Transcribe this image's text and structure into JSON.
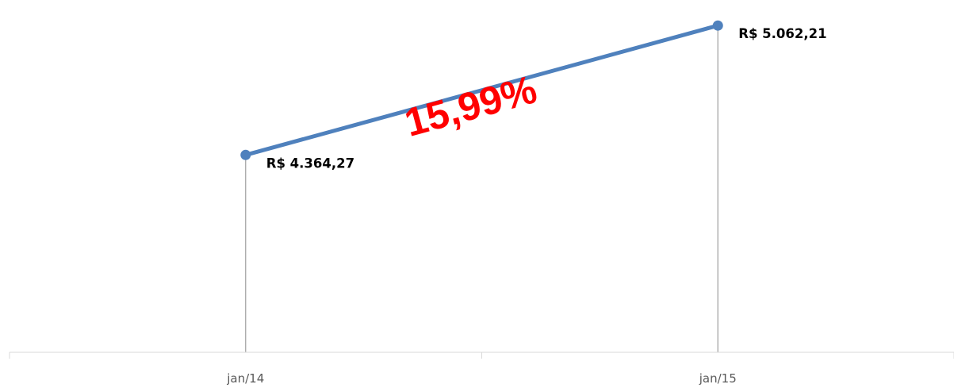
{
  "chart_data": {
    "type": "line",
    "categories": [
      "jan/14",
      "jan/15"
    ],
    "values": [
      4364.27,
      5062.21
    ],
    "data_labels": [
      "R$ 4.364,27",
      "R$ 5.062,21"
    ],
    "ylim": [
      3300,
      5200
    ],
    "grid": false,
    "legend": "none",
    "drop_lines": true,
    "annotation": {
      "text": "15,99%",
      "color": "#ff0000"
    },
    "colors": {
      "series": "#4f81bd",
      "axis": "#d9d9d9",
      "drop_line": "#a6a6a6"
    }
  }
}
